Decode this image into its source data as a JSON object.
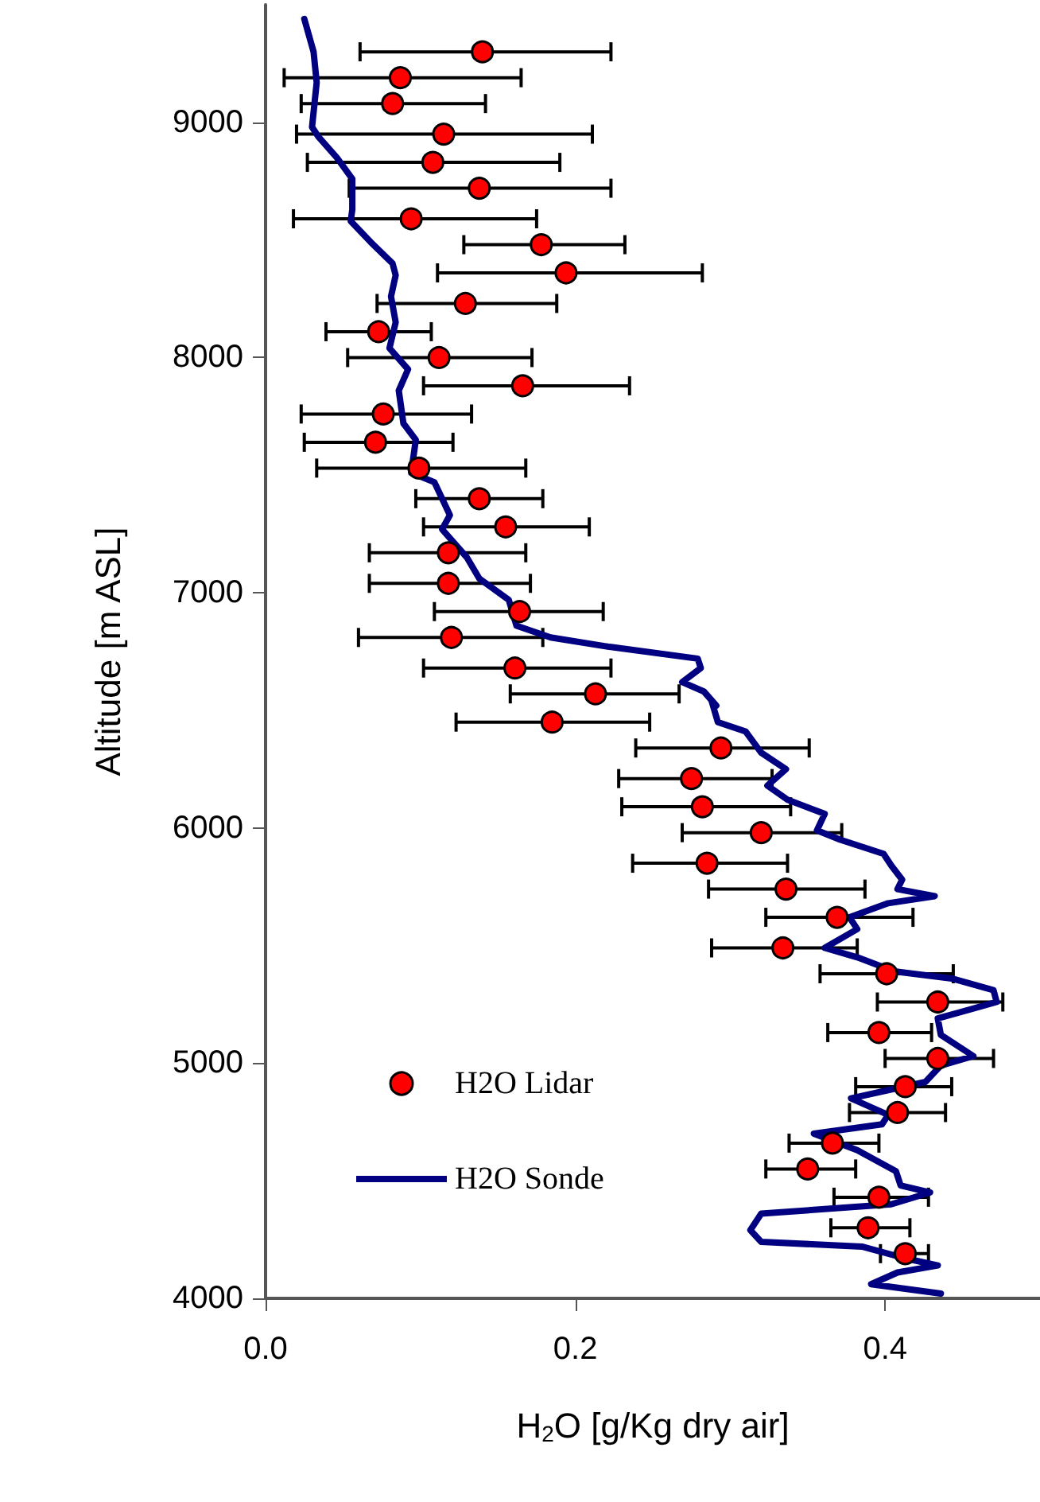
{
  "chart_data": {
    "type": "scatter",
    "xlabel": "H$_{2}$O [g/Kg dry air]",
    "ylabel": "Altitude [m ASL]",
    "xlim": [
      0,
      0.5
    ],
    "xticks": [
      {
        "value": 0,
        "label": "0.0"
      },
      0.2,
      0.4
    ],
    "ylim": [
      4000,
      9500
    ],
    "yticks": [
      4000,
      5000,
      6000,
      7000,
      8000,
      9000
    ],
    "grid": false,
    "legend": "bottom left",
    "series": [
      {
        "name": "H2O Lidar",
        "type": "scatter",
        "color": "#ff0000",
        "marker": "circle",
        "x": [
          0.14,
          0.087,
          0.082,
          0.115,
          0.108,
          0.138,
          0.094,
          0.178,
          0.194,
          0.129,
          0.073,
          0.112,
          0.166,
          0.076,
          0.071,
          0.099,
          0.138,
          0.155,
          0.118,
          0.118,
          0.164,
          0.12,
          0.161,
          0.213,
          0.185,
          0.294,
          0.275,
          0.282,
          0.32,
          0.285,
          0.336,
          0.369,
          0.334,
          0.401,
          0.434,
          0.396,
          0.434,
          0.413,
          0.408,
          0.366,
          0.35,
          0.396,
          0.389,
          0.413
        ],
        "values": [
          9300,
          9190,
          9080,
          8950,
          8830,
          8720,
          8590,
          8480,
          8360,
          8230,
          8110,
          8000,
          7880,
          7760,
          7640,
          7530,
          7400,
          7280,
          7170,
          7040,
          6920,
          6810,
          6680,
          6570,
          6450,
          6340,
          6210,
          6090,
          5980,
          5850,
          5740,
          5620,
          5490,
          5380,
          5260,
          5130,
          5020,
          4900,
          4790,
          4660,
          4550,
          4430,
          4300,
          4190
        ],
        "xerrors": [
          [
            0.061,
            0.223
          ],
          [
            0.012,
            0.165
          ],
          [
            0.023,
            0.142
          ],
          [
            0.02,
            0.211
          ],
          [
            0.027,
            0.19
          ],
          [
            0.054,
            0.223
          ],
          [
            0.018,
            0.175
          ],
          [
            0.128,
            0.232
          ],
          [
            0.111,
            0.282
          ],
          [
            0.072,
            0.188
          ],
          [
            0.039,
            0.107
          ],
          [
            0.053,
            0.172
          ],
          [
            0.102,
            0.235
          ],
          [
            0.023,
            0.133
          ],
          [
            0.025,
            0.121
          ],
          [
            0.033,
            0.168
          ],
          [
            0.097,
            0.179
          ],
          [
            0.102,
            0.209
          ],
          [
            0.067,
            0.168
          ],
          [
            0.067,
            0.171
          ],
          [
            0.109,
            0.218
          ],
          [
            0.06,
            0.179
          ],
          [
            0.102,
            0.223
          ],
          [
            0.158,
            0.267
          ],
          [
            0.123,
            0.248
          ],
          [
            0.239,
            0.351
          ],
          [
            0.228,
            0.327
          ],
          [
            0.23,
            0.339
          ],
          [
            0.269,
            0.372
          ],
          [
            0.237,
            0.337
          ],
          [
            0.286,
            0.387
          ],
          [
            0.323,
            0.418
          ],
          [
            0.288,
            0.382
          ],
          [
            0.358,
            0.444
          ],
          [
            0.395,
            0.476
          ],
          [
            0.363,
            0.43
          ],
          [
            0.4,
            0.47
          ],
          [
            0.381,
            0.443
          ],
          [
            0.377,
            0.439
          ],
          [
            0.338,
            0.396
          ],
          [
            0.323,
            0.381
          ],
          [
            0.367,
            0.428
          ],
          [
            0.365,
            0.416
          ],
          [
            0.397,
            0.428
          ]
        ]
      },
      {
        "name": "H2O Sonde",
        "type": "line",
        "color": "#000080",
        "marker": "none",
        "x": [
          0.025,
          0.031,
          0.033,
          0.03,
          0.034,
          0.046,
          0.056,
          0.056,
          0.055,
          0.068,
          0.082,
          0.084,
          0.081,
          0.084,
          0.08,
          0.092,
          0.086,
          0.089,
          0.097,
          0.094,
          0.109,
          0.119,
          0.114,
          0.13,
          0.138,
          0.157,
          0.162,
          0.184,
          0.222,
          0.279,
          0.281,
          0.269,
          0.283,
          0.291,
          0.288,
          0.292,
          0.31,
          0.32,
          0.336,
          0.324,
          0.337,
          0.361,
          0.356,
          0.371,
          0.399,
          0.404,
          0.411,
          0.408,
          0.432,
          0.402,
          0.377,
          0.382,
          0.361,
          0.382,
          0.406,
          0.443,
          0.47,
          0.472,
          0.434,
          0.436,
          0.457,
          0.436,
          0.426,
          0.378,
          0.402,
          0.398,
          0.354,
          0.382,
          0.407,
          0.41,
          0.429,
          0.404,
          0.32,
          0.313,
          0.32,
          0.385,
          0.413,
          0.434,
          0.408,
          0.391,
          0.436
        ],
        "values": [
          9440,
          9300,
          9170,
          8980,
          8940,
          8850,
          8760,
          8630,
          8580,
          8490,
          8400,
          8350,
          8260,
          8150,
          8040,
          7950,
          7860,
          7720,
          7650,
          7510,
          7470,
          7330,
          7270,
          7150,
          7060,
          6970,
          6860,
          6810,
          6770,
          6720,
          6680,
          6620,
          6580,
          6520,
          6540,
          6450,
          6410,
          6320,
          6250,
          6180,
          6120,
          6060,
          5990,
          5950,
          5890,
          5840,
          5780,
          5740,
          5710,
          5680,
          5620,
          5570,
          5490,
          5450,
          5390,
          5360,
          5310,
          5260,
          5190,
          5120,
          5030,
          4990,
          4920,
          4850,
          4780,
          4740,
          4700,
          4630,
          4540,
          4480,
          4450,
          4400,
          4360,
          4290,
          4240,
          4220,
          4170,
          4140,
          4110,
          4060,
          4020
        ]
      }
    ]
  }
}
